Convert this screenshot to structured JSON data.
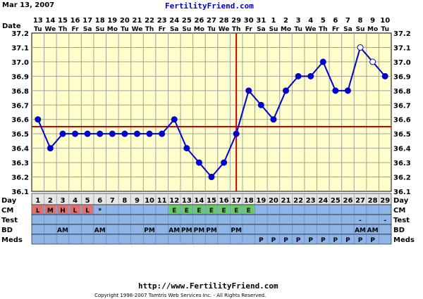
{
  "header": {
    "date_label": "Mar 13, 2007",
    "site_title": "FertilityFriend.com"
  },
  "footer": {
    "url": "http://www.FertilityFriend.com",
    "copyright": "Copyright 1998-2007 Tamtris Web Services Inc. - All Rights Reserved."
  },
  "row_labels": {
    "date": "Date",
    "day": "Day",
    "cm": "CM",
    "test": "Test",
    "bd": "BD",
    "meds": "Meds"
  },
  "colors": {
    "plot_bg": "#ffffcc",
    "grid": "#a0a0a0",
    "line": "#0000cc",
    "coverline": "#cc0000",
    "row_bg": "#8fb5e6",
    "day_row_bg": "#e6e6e6",
    "cm_red": "#e07070",
    "cm_green": "#66cc66"
  },
  "chart_data": {
    "type": "line",
    "xlabel": "Day",
    "ylabel": "",
    "ylim": [
      36.1,
      37.2
    ],
    "yticks": [
      "36.1",
      "36.2",
      "36.3",
      "36.4",
      "36.5",
      "36.6",
      "36.7",
      "36.8",
      "36.9",
      "37.0",
      "37.1",
      "37.2"
    ],
    "grid": true,
    "days": [
      "1",
      "2",
      "3",
      "4",
      "5",
      "6",
      "7",
      "8",
      "9",
      "10",
      "11",
      "12",
      "13",
      "14",
      "15",
      "16",
      "17",
      "18",
      "19",
      "20",
      "21",
      "22",
      "23",
      "24",
      "25",
      "26",
      "27",
      "28",
      "29"
    ],
    "dates": [
      "13",
      "14",
      "15",
      "16",
      "17",
      "18",
      "19",
      "20",
      "21",
      "22",
      "23",
      "24",
      "25",
      "26",
      "27",
      "28",
      "29",
      "30",
      "31",
      "1",
      "2",
      "3",
      "4",
      "5",
      "6",
      "7",
      "8",
      "9",
      "10"
    ],
    "weekdays": [
      "Tu",
      "We",
      "Th",
      "Fr",
      "Sa",
      "Su",
      "Mo",
      "Tu",
      "We",
      "Th",
      "Fr",
      "Sa",
      "Su",
      "Mo",
      "Tu",
      "We",
      "Th",
      "Fr",
      "Sa",
      "Su",
      "Mo",
      "Tu",
      "We",
      "Th",
      "Fr",
      "Sa",
      "Su",
      "Mo",
      "Tu"
    ],
    "temps": [
      36.6,
      36.4,
      36.5,
      36.5,
      36.5,
      36.5,
      36.5,
      36.5,
      36.5,
      36.5,
      36.5,
      36.6,
      36.4,
      36.3,
      36.2,
      36.3,
      36.5,
      36.8,
      36.7,
      36.6,
      36.8,
      36.9,
      36.9,
      37.0,
      36.8,
      36.8,
      37.1,
      37.0,
      36.9
    ],
    "open_points": [
      27,
      28
    ],
    "coverline": 36.55,
    "ovulation_day": 17,
    "cm": [
      "L",
      "M",
      "H",
      "L",
      "L",
      "*",
      "",
      "",
      "",
      "",
      "",
      "E",
      "E",
      "E",
      "E",
      "E",
      "E",
      "E",
      "",
      "",
      "",
      "",
      "",
      "",
      "",
      "",
      "",
      "",
      ""
    ],
    "cm_color": [
      "red",
      "red",
      "red",
      "red",
      "red",
      "",
      "",
      "",
      "",
      "",
      "",
      "green",
      "green",
      "green",
      "green",
      "green",
      "green",
      "green",
      "",
      "",
      "",
      "",
      "",
      "",
      "",
      "",
      "",
      "",
      ""
    ],
    "test": [
      "",
      "",
      "",
      "",
      "",
      "",
      "",
      "",
      "",
      "",
      "",
      "",
      "",
      "",
      "",
      "",
      "",
      "",
      "",
      "",
      "",
      "",
      "",
      "",
      "",
      "",
      "-",
      "",
      "-"
    ],
    "bd": [
      "",
      "",
      "AM",
      "",
      "",
      "AM",
      "",
      "",
      "",
      "PM",
      "",
      "AM",
      "PM",
      "PM",
      "PM",
      "",
      "PM",
      "",
      "",
      "",
      "",
      "",
      "",
      "",
      "",
      "",
      "AM",
      "AM",
      ""
    ],
    "meds": [
      "",
      "",
      "",
      "",
      "",
      "",
      "",
      "",
      "",
      "",
      "",
      "",
      "",
      "",
      "",
      "",
      "",
      "",
      "P",
      "P",
      "P",
      "P",
      "P",
      "P",
      "P",
      "P",
      "P",
      "P",
      ""
    ]
  }
}
